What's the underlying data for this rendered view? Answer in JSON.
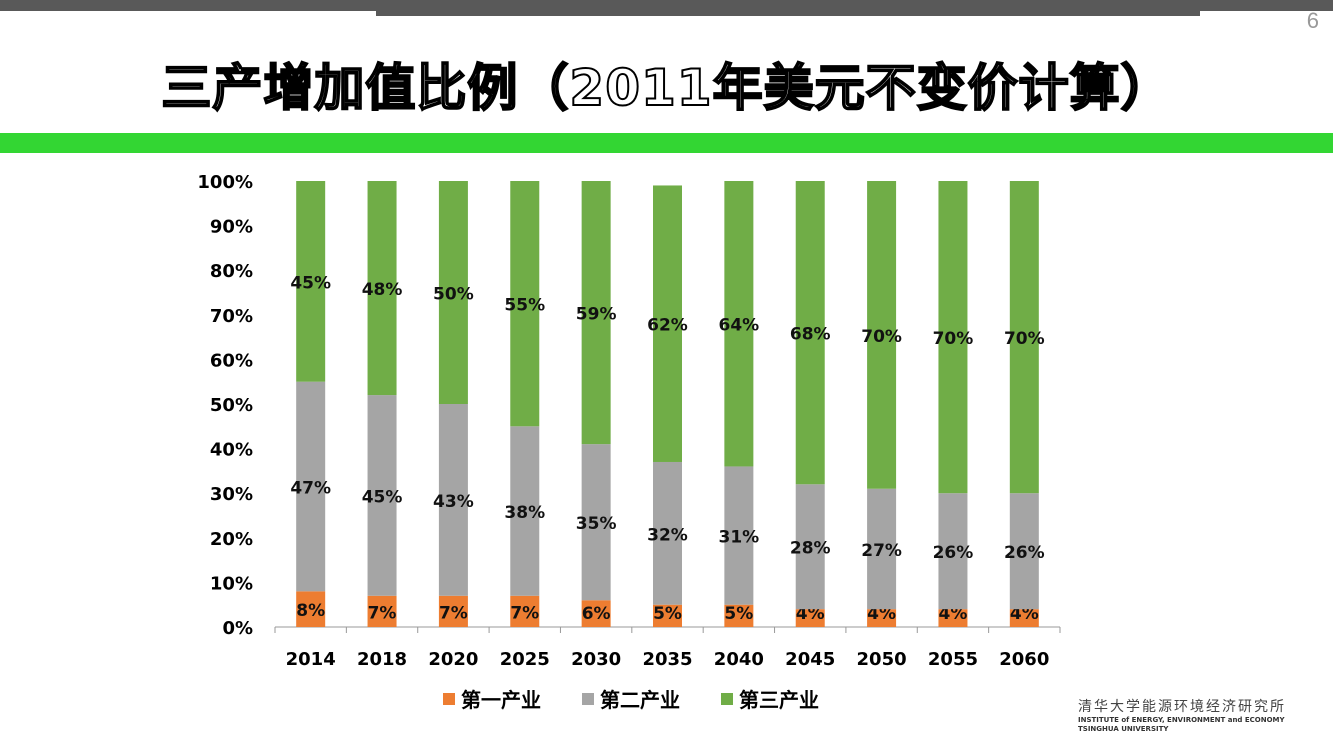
{
  "page_number": "6",
  "title": "三产增加值比例（2011年美元不变价计算）",
  "logo": {
    "cn": "清华大学能源环境经济研究所",
    "en1": "INSTITUTE of ENERGY, ENVIRONMENT and ECONOMY",
    "en2": "TSINGHUA UNIVERSITY"
  },
  "chart_data": {
    "type": "bar",
    "stacked": true,
    "title": "",
    "categories": [
      "2014",
      "2018",
      "2020",
      "2025",
      "2030",
      "2035",
      "2040",
      "2045",
      "2050",
      "2055",
      "2060"
    ],
    "series": [
      {
        "name": "第一产业",
        "color": "#ED7D31",
        "values": [
          8,
          7,
          7,
          7,
          6,
          5,
          5,
          4,
          4,
          4,
          4
        ]
      },
      {
        "name": "第二产业",
        "color": "#A5A5A5",
        "values": [
          47,
          45,
          43,
          38,
          35,
          32,
          31,
          28,
          27,
          26,
          26
        ]
      },
      {
        "name": "第三产业",
        "color": "#70AD47",
        "values": [
          45,
          48,
          50,
          55,
          59,
          62,
          64,
          68,
          70,
          70,
          70
        ]
      }
    ],
    "ylim": [
      0,
      100
    ],
    "yticks": [
      "0%",
      "10%",
      "20%",
      "30%",
      "40%",
      "50%",
      "60%",
      "70%",
      "80%",
      "90%",
      "100%"
    ],
    "grid": false,
    "legend": "bottom",
    "data_label_suffix": "%"
  }
}
